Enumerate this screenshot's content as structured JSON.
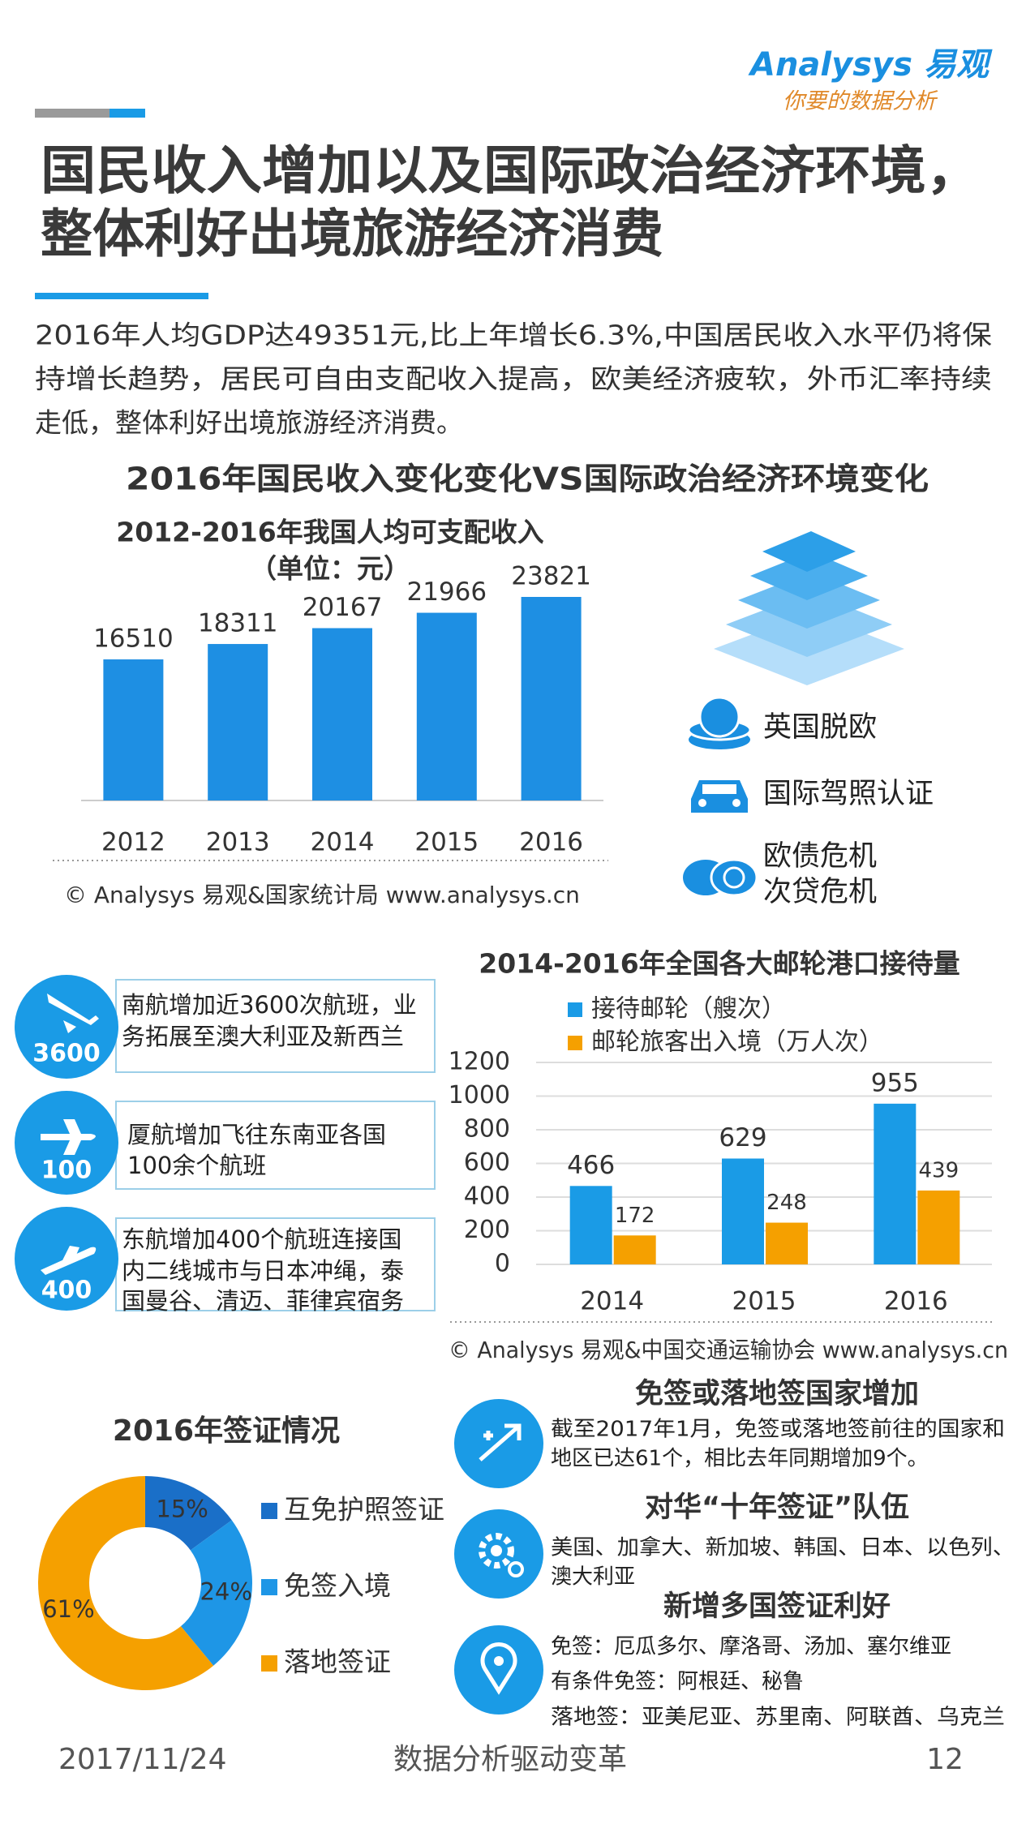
{
  "header": {
    "logo": "Analysys 易观",
    "slogan": "你要的数据分析",
    "title": [
      "国民收入增加以及国际政治经济环境，",
      "整体利好出境旅游经济消费"
    ],
    "intro": [
      "2016年人均GDP达49351元,比上年增长6.3%,中国居民收入水平仍将保",
      "持增长趋势，居民可自由支配收入提高，欧美经济疲软，外币汇率持续",
      "走低，整体利好出境旅游经济消费。"
    ]
  },
  "section_title": "2016年国民收入变化变化VS国际政治经济环境变化",
  "chart_data": [
    {
      "type": "bar",
      "title": "2012-2016年我国人均可支配收入",
      "subtitle": "（单位：元）",
      "categories": [
        "2012",
        "2013",
        "2014",
        "2015",
        "2016"
      ],
      "values": [
        16510,
        18311,
        20167,
        21966,
        23821
      ],
      "color": "#1e8fe3",
      "source": "© Analysys 易观&国家统计局  www.analysys.cn"
    },
    {
      "type": "grouped-bar",
      "title": "2014-2016年全国各大邮轮港口接待量",
      "categories": [
        "2014",
        "2015",
        "2016"
      ],
      "series": [
        {
          "name": "接待邮轮（艘次）",
          "color": "#1a9be6",
          "values": [
            466,
            629,
            955
          ]
        },
        {
          "name": "邮轮旅客出入境（万人次）",
          "color": "#f5a000",
          "values": [
            172,
            248,
            439
          ]
        }
      ],
      "ylim": [
        0,
        1200
      ],
      "yticks": [
        0,
        200,
        400,
        600,
        800,
        1000,
        1200
      ],
      "grid": true,
      "source": "© Analysys 易观&中国交通运输协会 www.analysys.cn"
    },
    {
      "type": "donut",
      "title": "2016年签证情况",
      "categories": [
        "互免护照签证",
        "免签入境",
        "落地签证"
      ],
      "values": [
        15,
        24,
        61
      ],
      "value_labels": [
        "15%",
        "24%",
        "61%"
      ],
      "colors": [
        "#1a6fc8",
        "#1e96e6",
        "#f5a000"
      ]
    }
  ],
  "risk_factors": [
    "英国脱欧",
    "国际驾照认证",
    "欧债危机",
    "次贷危机"
  ],
  "airlines": [
    {
      "badge": "3600",
      "lines": [
        "南航增加近3600次航班，业",
        "务拓展至澳大利亚及新西兰"
      ]
    },
    {
      "badge": "100",
      "lines": [
        "厦航增加飞往东南亚各国",
        "100余个航班"
      ]
    },
    {
      "badge": "400",
      "lines": [
        "东航增加400个航班连接国",
        "内二线城市与日本冲绳，泰",
        "国曼谷、清迈、菲律宾宿务"
      ]
    }
  ],
  "visa_news": [
    {
      "heading": "免签或落地签国家增加",
      "lines": [
        "截至2017年1月，免签或落地签前往的国家和",
        "地区已达61个，相比去年同期增加9个。"
      ]
    },
    {
      "heading": "对华“十年签证”队伍",
      "lines": [
        "美国、加拿大、新加坡、韩国、日本、以色列、",
        "澳大利亚"
      ]
    },
    {
      "heading": "新增多国签证利好",
      "lines": [
        "免签：厄瓜多尔、摩洛哥、汤加、塞尔维亚",
        "有条件免签：阿根廷、秘鲁",
        "落地签：亚美尼亚、苏里南、阿联酋、乌克兰"
      ]
    }
  ],
  "footer": {
    "date": "2017/11/24",
    "slogan": "数据分析驱动变革",
    "page": "12"
  }
}
